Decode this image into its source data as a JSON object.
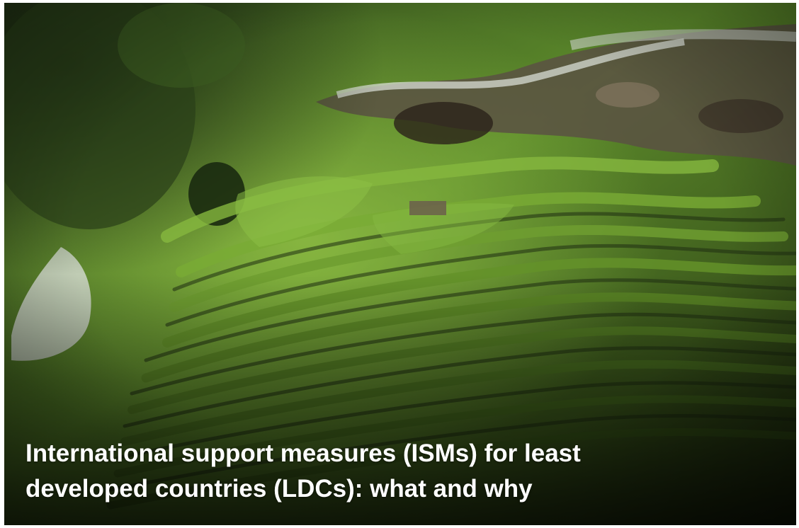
{
  "card": {
    "title_lines": [
      "International support measures (ISMs) for least",
      "developed countries (LDCs): what and why"
    ]
  },
  "image": {
    "subject": "aerial-view-rice-terraces",
    "colors": {
      "forest_dark": "#24361a",
      "terrace_bright": "#7aa83a",
      "terrace_mid": "#4f7a26",
      "terrace_shadow": "#1f2e12",
      "rock": "#6b5e4c",
      "mist": "#d8ddd6"
    }
  }
}
